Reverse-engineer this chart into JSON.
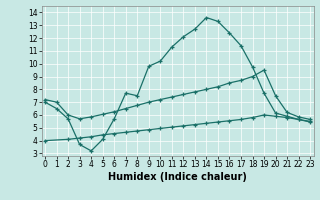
{
  "bg_color": "#c8e8e4",
  "line_color": "#1a7068",
  "xlim": [
    -0.3,
    23.3
  ],
  "ylim": [
    2.8,
    14.5
  ],
  "xticks": [
    0,
    1,
    2,
    3,
    4,
    5,
    6,
    7,
    8,
    9,
    10,
    11,
    12,
    13,
    14,
    15,
    16,
    17,
    18,
    19,
    20,
    21,
    22,
    23
  ],
  "yticks": [
    3,
    4,
    5,
    6,
    7,
    8,
    9,
    10,
    11,
    12,
    13,
    14
  ],
  "xlabel": "Humidex (Indice chaleur)",
  "line1_x": [
    0,
    1,
    2,
    3,
    4,
    5,
    6,
    7,
    8,
    9,
    10,
    11,
    12,
    13,
    14,
    15,
    16,
    17,
    18,
    19,
    20,
    21,
    22,
    23
  ],
  "line1_y": [
    7.0,
    6.5,
    5.7,
    3.7,
    3.2,
    4.1,
    5.7,
    7.7,
    7.5,
    9.8,
    10.2,
    11.3,
    12.1,
    12.7,
    13.6,
    13.3,
    12.4,
    11.4,
    9.75,
    7.7,
    6.15,
    5.9,
    5.65,
    5.45
  ],
  "line2_x": [
    0,
    1,
    2,
    3,
    4,
    5,
    6,
    7,
    8,
    9,
    10,
    11,
    12,
    13,
    14,
    15,
    16,
    17,
    18,
    19,
    20,
    21,
    22,
    23
  ],
  "line2_y": [
    7.2,
    7.0,
    6.0,
    5.7,
    5.85,
    6.05,
    6.25,
    6.5,
    6.75,
    7.0,
    7.2,
    7.4,
    7.6,
    7.8,
    8.0,
    8.2,
    8.5,
    8.7,
    9.0,
    9.5,
    7.5,
    6.2,
    5.85,
    5.65
  ],
  "line3_x": [
    0,
    2,
    3,
    4,
    5,
    6,
    7,
    8,
    9,
    10,
    11,
    12,
    13,
    14,
    15,
    16,
    17,
    18,
    19,
    20,
    21,
    22,
    23
  ],
  "line3_y": [
    4.0,
    4.1,
    4.2,
    4.3,
    4.45,
    4.55,
    4.65,
    4.75,
    4.85,
    4.95,
    5.05,
    5.15,
    5.25,
    5.35,
    5.45,
    5.55,
    5.65,
    5.8,
    6.0,
    5.9,
    5.8,
    5.65,
    5.5
  ],
  "font_tick": 5.5,
  "font_label": 7,
  "lw": 0.9,
  "ms": 3.5
}
